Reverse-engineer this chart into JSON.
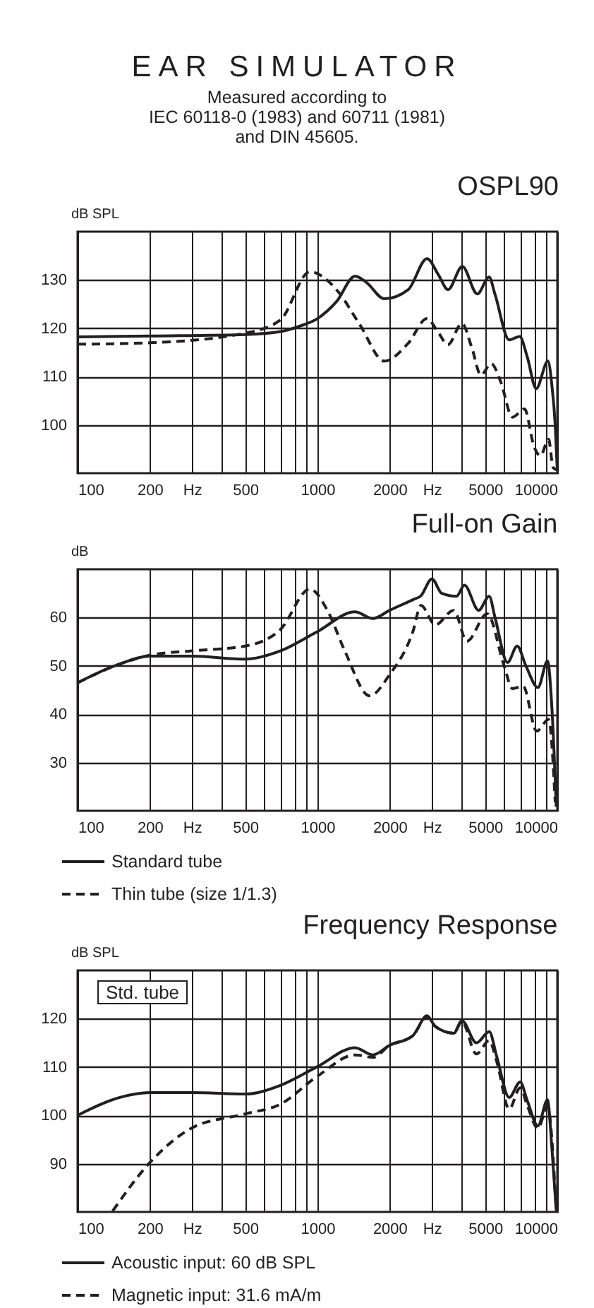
{
  "chart_data": [
    {
      "type": "other",
      "title": "EAR SIMULATOR",
      "subtitle": [
        "Measured according to",
        "IEC 60118-0 (1983) and 60711 (1981)",
        "and DIN 45605."
      ]
    },
    {
      "type": "line",
      "title": "OSPL90",
      "ylabel": "dB SPL",
      "log": "x",
      "grid": true,
      "xlim": [
        100,
        10000
      ],
      "ylim": [
        90,
        140
      ],
      "yticks": [
        100,
        110,
        120,
        130
      ],
      "xticks": [
        100,
        200,
        {
          "value": 300,
          "label": "Hz"
        },
        {
          "value": 400,
          "label": null
        },
        500,
        {
          "value": 600,
          "label": null
        },
        {
          "value": 700,
          "label": null
        },
        {
          "value": 800,
          "label": null
        },
        {
          "value": 900,
          "label": null
        },
        1000,
        2000,
        {
          "value": 3000,
          "label": "Hz"
        },
        {
          "value": 4000,
          "label": null
        },
        5000,
        {
          "value": 6000,
          "label": null
        },
        {
          "value": 7000,
          "label": null
        },
        {
          "value": 8000,
          "label": null
        },
        {
          "value": 9000,
          "label": null
        },
        10000
      ],
      "series": [
        {
          "color": "#231f20",
          "line_style": "solid",
          "x": [
            100,
            200,
            500,
            700,
            850,
            1000,
            1200,
            1435,
            1600,
            1900,
            2390,
            2862,
            3200,
            3500,
            4018,
            4640,
            5195,
            5500,
            6300,
            6966,
            7500,
            8160,
            9140,
            9500,
            9800,
            10000
          ],
          "values": [
            118.2,
            118.4,
            118.7,
            119.3,
            120.5,
            122,
            125.5,
            130.8,
            129.5,
            126.1,
            128,
            134.4,
            131,
            128,
            132.8,
            127.1,
            130.6,
            127,
            117.6,
            118.3,
            114,
            107.5,
            113.2,
            108,
            100,
            90.5
          ]
        },
        {
          "color": "#231f20",
          "line_style": "dashed",
          "x": [
            100,
            200,
            500,
            700,
            930,
            1200,
            1500,
            1900,
            2390,
            2862,
            3200,
            3500,
            4000,
            4400,
            4800,
            5300,
            5800,
            6500,
            7300,
            8000,
            8500,
            9200,
            9600,
            9900
          ],
          "values": [
            116.7,
            117,
            119,
            121.7,
            131.7,
            128,
            120.8,
            113.2,
            116.9,
            122,
            119,
            116.6,
            121,
            116,
            110.3,
            112.7,
            109,
            101.6,
            103.3,
            95.5,
            93.6,
            97,
            91.2,
            90.7
          ]
        }
      ]
    },
    {
      "type": "line",
      "title": "Full-on Gain",
      "ylabel": "dB",
      "log": "x",
      "grid": true,
      "legend": "bottom",
      "xlim": [
        100,
        10000
      ],
      "ylim": [
        20,
        70
      ],
      "yticks": [
        30,
        40,
        50,
        60
      ],
      "xticks": [
        100,
        200,
        {
          "value": 300,
          "label": "Hz"
        },
        {
          "value": 400,
          "label": null
        },
        500,
        {
          "value": 600,
          "label": null
        },
        {
          "value": 700,
          "label": null
        },
        {
          "value": 800,
          "label": null
        },
        {
          "value": 900,
          "label": null
        },
        1000,
        2000,
        {
          "value": 3000,
          "label": "Hz"
        },
        {
          "value": 4000,
          "label": null
        },
        5000,
        {
          "value": 6000,
          "label": null
        },
        {
          "value": 7000,
          "label": null
        },
        {
          "value": 8000,
          "label": null
        },
        {
          "value": 9000,
          "label": null
        },
        10000
      ],
      "series": [
        {
          "name": "Standard tube",
          "color": "#231f20",
          "line_style": "solid",
          "x": [
            100,
            130,
            150,
            200,
            300,
            500,
            700,
            1000,
            1435,
            1700,
            2000,
            2500,
            2700,
            3000,
            3300,
            3800,
            4100,
            4700,
            5200,
            5500,
            6200,
            6800,
            7400,
            8300,
            9100,
            9500,
            9900
          ],
          "values": [
            46.5,
            49.2,
            50.4,
            52,
            52,
            51.4,
            53.1,
            57.1,
            61.2,
            59.8,
            61.5,
            63.7,
            64.5,
            68,
            65,
            64.4,
            66.7,
            61.5,
            64.4,
            60,
            50.7,
            54.1,
            50,
            45.5,
            51,
            41,
            20.8
          ]
        },
        {
          "name": "Thin tube (size 1/1.3)",
          "color": "#231f20",
          "line_style": "dashed",
          "x": [
            100,
            150,
            200,
            300,
            500,
            700,
            930,
            1100,
            1300,
            1650,
            2000,
            2500,
            2700,
            3100,
            3700,
            4200,
            5100,
            6000,
            6500,
            7200,
            8200,
            9200,
            9800
          ],
          "values": [
            46.5,
            50.4,
            52.2,
            53.1,
            54.1,
            57.5,
            65.9,
            61.5,
            53.1,
            43.8,
            48.2,
            57.1,
            62.5,
            58.5,
            61.5,
            55.1,
            60.8,
            50,
            45.3,
            45.8,
            36.5,
            38.9,
            21.8
          ]
        }
      ]
    },
    {
      "type": "line",
      "title": "Frequency Response",
      "ylabel": "dB SPL",
      "log": "x",
      "grid": true,
      "legend": "bottom",
      "annotations": [
        "Std. tube"
      ],
      "xlim": [
        100,
        10000
      ],
      "ylim": [
        80,
        130
      ],
      "yticks": [
        90,
        100,
        110,
        120
      ],
      "xticks": [
        100,
        200,
        {
          "value": 300,
          "label": "Hz"
        },
        {
          "value": 400,
          "label": null
        },
        500,
        {
          "value": 600,
          "label": null
        },
        {
          "value": 700,
          "label": null
        },
        {
          "value": 800,
          "label": null
        },
        {
          "value": 900,
          "label": null
        },
        1000,
        2000,
        {
          "value": 3000,
          "label": "Hz"
        },
        {
          "value": 4000,
          "label": null
        },
        5000,
        {
          "value": 6000,
          "label": null
        },
        {
          "value": 7000,
          "label": null
        },
        {
          "value": 8000,
          "label": null
        },
        {
          "value": 9000,
          "label": null
        },
        10000
      ],
      "series": [
        {
          "name": "Acoustic input: 60 dB SPL",
          "color": "#231f20",
          "line_style": "solid",
          "x": [
            100,
            150,
            200,
            300,
            500,
            700,
            1000,
            1435,
            1700,
            2000,
            2500,
            2862,
            3100,
            3700,
            4000,
            4600,
            5200,
            5600,
            6300,
            7000,
            7500,
            8300,
            9100,
            9500,
            9900
          ],
          "values": [
            100,
            103.7,
            104.7,
            104.7,
            104.4,
            106.2,
            110.1,
            114,
            112.5,
            114.5,
            116.5,
            120.6,
            118.4,
            117,
            119.6,
            115,
            117.3,
            112,
            103.7,
            106.9,
            103,
            97.8,
            103.2,
            93,
            80.2
          ]
        },
        {
          "name": "Magnetic input: 31.6 mA/m",
          "color": "#231f20",
          "line_style": "dashed",
          "x": [
            140,
            200,
            300,
            500,
            700,
            1000,
            1435,
            1700,
            2000,
            2500,
            2862,
            3100,
            3700,
            4000,
            4600,
            5200,
            5600,
            6300,
            7000,
            7500,
            8300,
            9100,
            9900
          ],
          "values": [
            80.2,
            90.2,
            97.4,
            100.3,
            102.3,
            108.1,
            112.5,
            112,
            114.5,
            116.5,
            120.4,
            118.4,
            117,
            119.4,
            112.7,
            115.5,
            111,
            101.3,
            105.7,
            102,
            97.3,
            101.8,
            80.2
          ]
        }
      ]
    }
  ]
}
